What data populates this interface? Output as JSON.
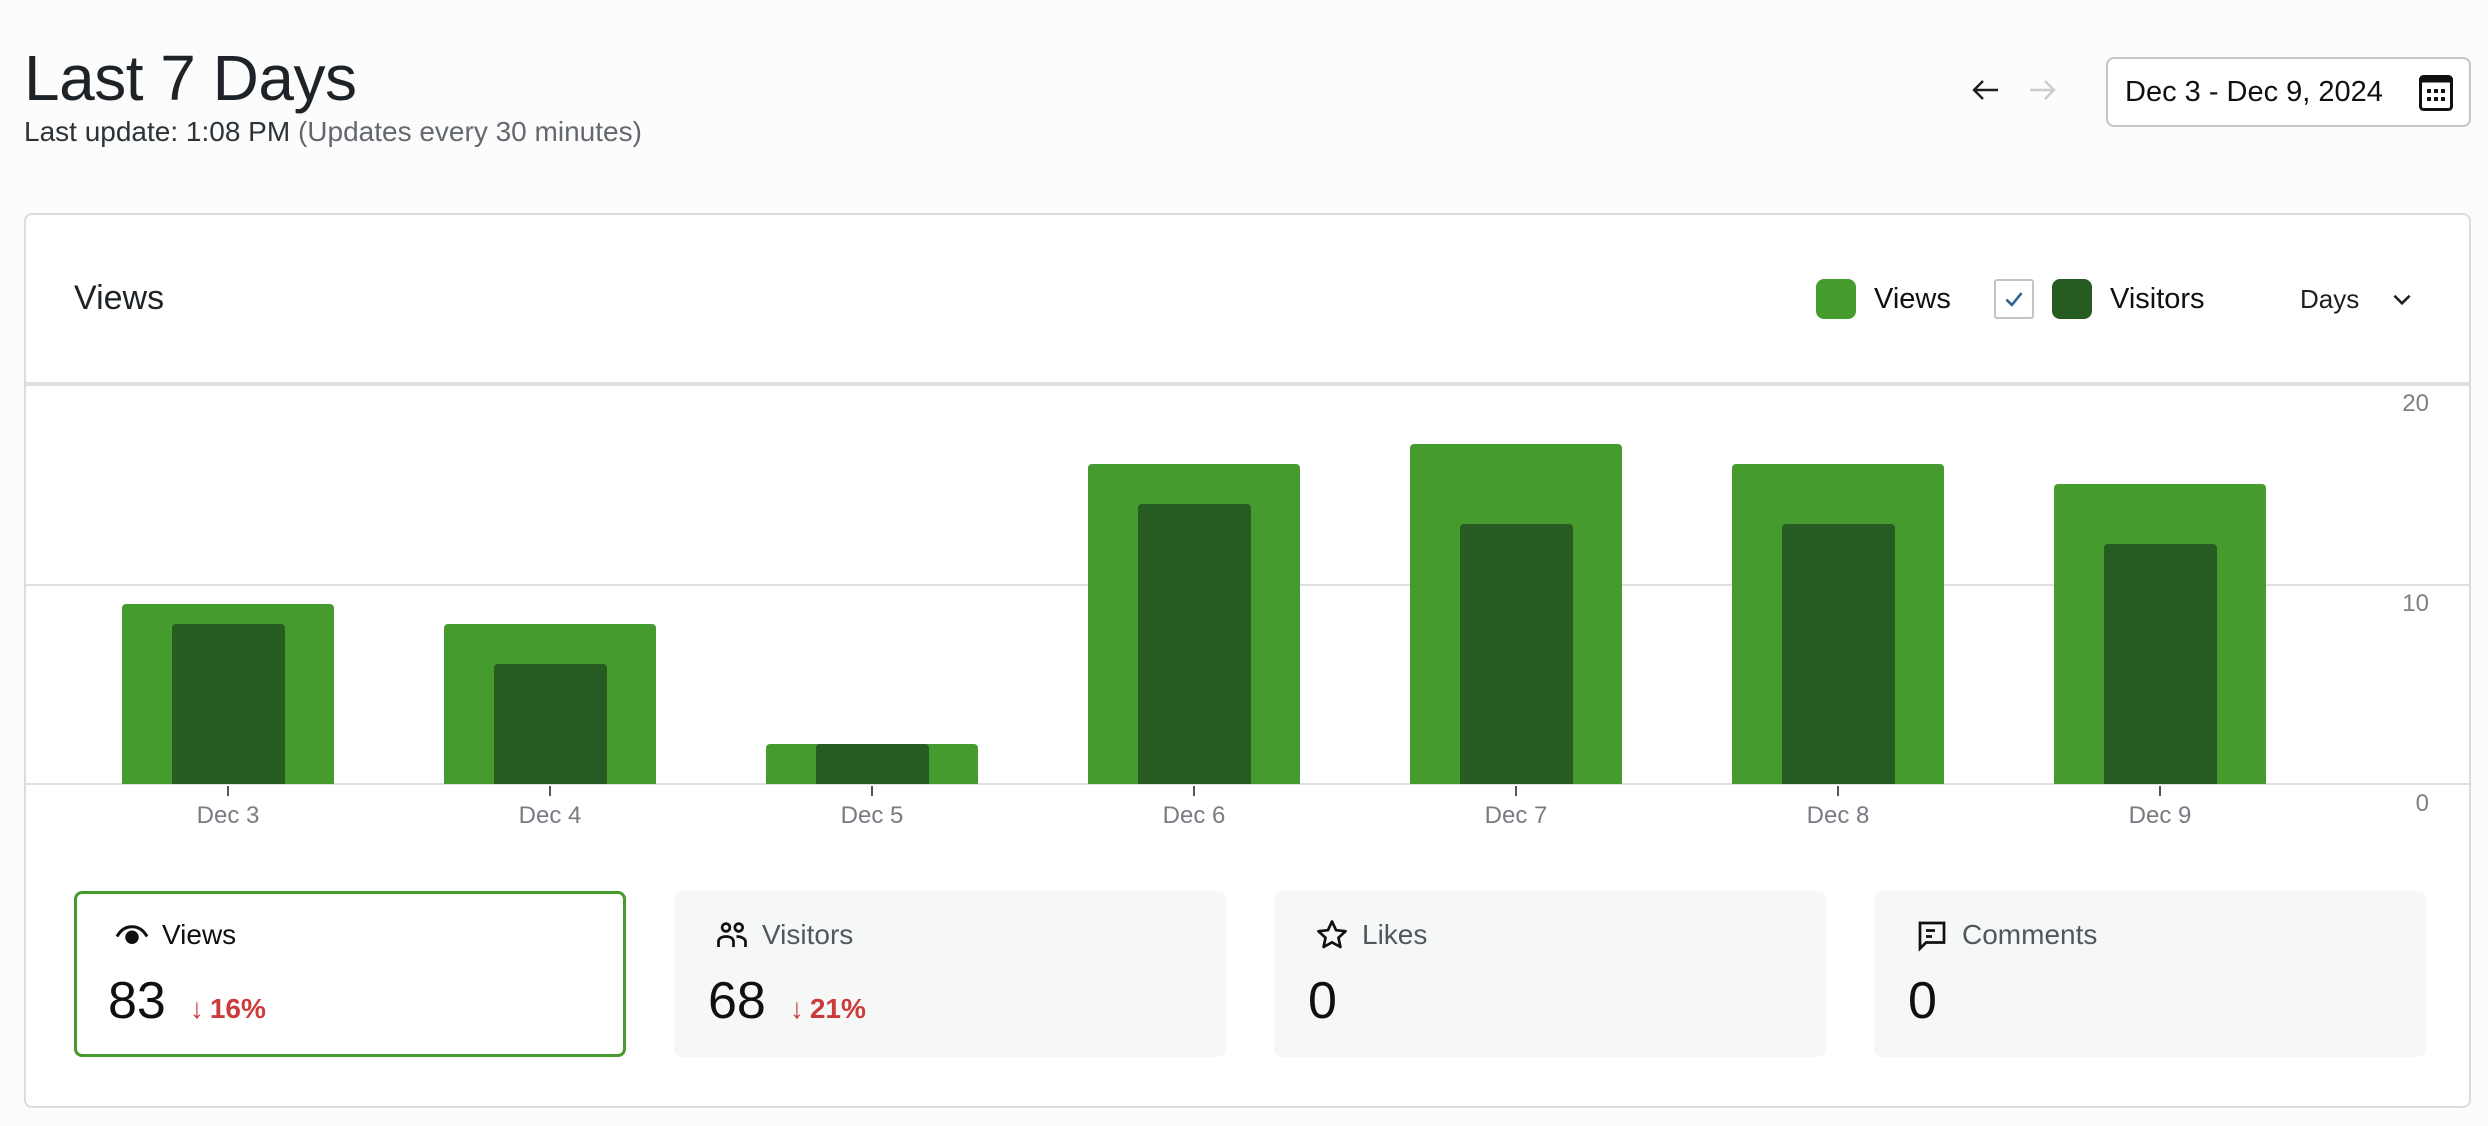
{
  "header": {
    "title": "Last 7 Days",
    "last_update_label": "Last update: 1:08 PM",
    "update_frequency": "(Updates every 30 minutes)",
    "date_range": "Dec 3 - Dec 9, 2024",
    "prev_icon": "arrow-left-icon",
    "next_icon": "arrow-right-icon",
    "calendar_icon": "calendar-icon"
  },
  "chart_card": {
    "title": "Views",
    "legend": [
      {
        "label": "Views",
        "color": "#469b2f"
      },
      {
        "label": "Visitors",
        "color": "#265b22",
        "checked": true
      }
    ],
    "interval": "Days"
  },
  "chart_data": {
    "type": "bar",
    "title": "Views",
    "categories": [
      "Dec 3",
      "Dec 4",
      "Dec 5",
      "Dec 6",
      "Dec 7",
      "Dec 8",
      "Dec 9"
    ],
    "series": [
      {
        "name": "Views",
        "color": "#469b2f",
        "values": [
          9,
          8,
          2,
          16,
          17,
          16,
          15
        ]
      },
      {
        "name": "Visitors",
        "color": "#265b22",
        "values": [
          8,
          6,
          2,
          14,
          13,
          13,
          12
        ]
      }
    ],
    "y_ticks": [
      "20",
      "10",
      "0"
    ],
    "ylim": [
      0,
      20
    ],
    "xlabel": "",
    "ylabel": "",
    "grid": true,
    "y_axis_position": "right",
    "legend_position": "top-right"
  },
  "stats": [
    {
      "label": "Views",
      "icon": "eye-icon",
      "value": "83",
      "change_arrow": "↓",
      "change": "16%",
      "active": true
    },
    {
      "label": "Visitors",
      "icon": "people-icon",
      "value": "68",
      "change_arrow": "↓",
      "change": "21%",
      "active": false
    },
    {
      "label": "Likes",
      "icon": "star-icon",
      "value": "0",
      "active": false
    },
    {
      "label": "Comments",
      "icon": "comment-icon",
      "value": "0",
      "active": false
    }
  ]
}
